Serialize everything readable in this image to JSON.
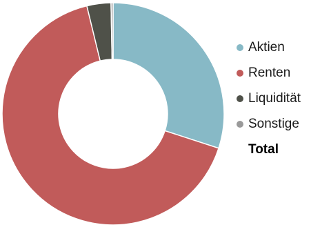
{
  "chart_data": {
    "type": "pie",
    "variant": "donut",
    "categories": [
      "Aktien",
      "Renten",
      "Liquidität",
      "Sonstige"
    ],
    "values": [
      30.0,
      66.2,
      3.5,
      0.3
    ],
    "value_unit": "% of total",
    "colors": [
      "#87b9c6",
      "#c15b5a",
      "#4f5149",
      "#9a9a9a"
    ],
    "legend_position": "right",
    "legend_extra_label": "Total"
  }
}
